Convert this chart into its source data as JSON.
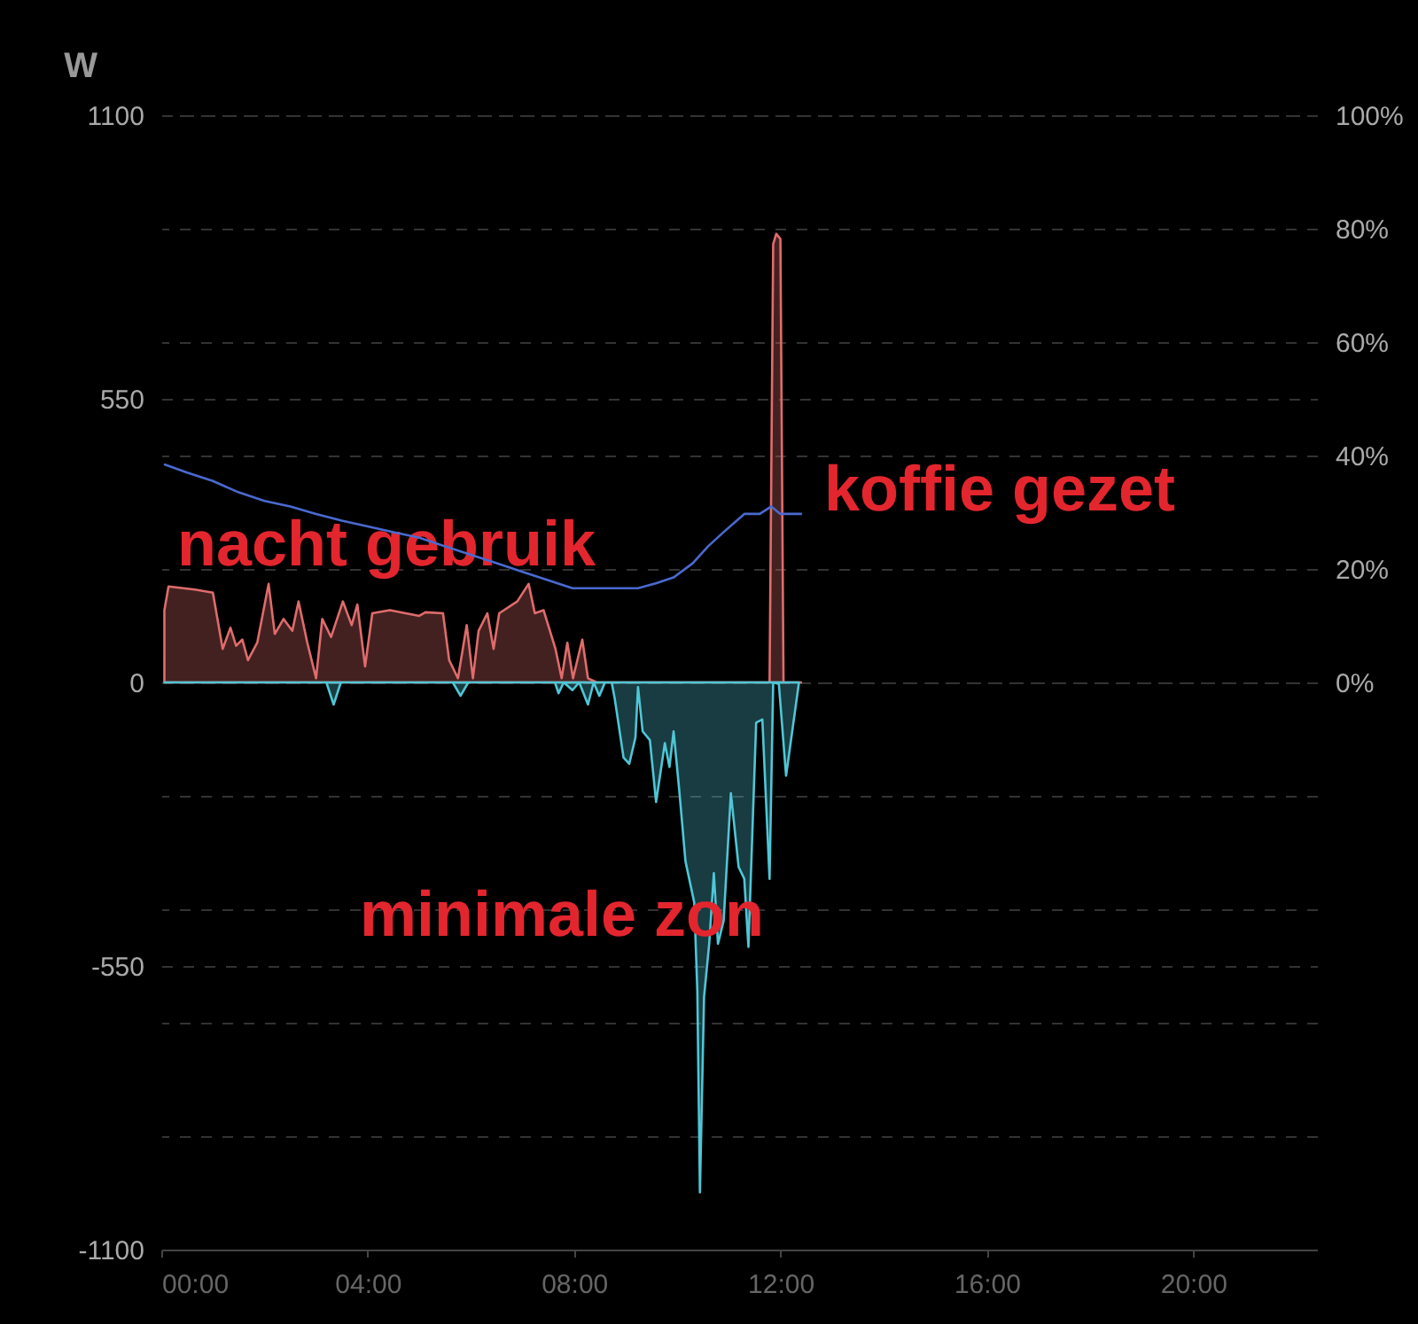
{
  "chart_data": {
    "type": "area",
    "ylabel": "W",
    "xlim": [
      0,
      22.4
    ],
    "xticks": [
      {
        "value": 0,
        "label": "00:00"
      },
      {
        "value": 4,
        "label": "04:00"
      },
      {
        "value": 8,
        "label": "08:00"
      },
      {
        "value": 12,
        "label": "12:00"
      },
      {
        "value": 16,
        "label": "16:00"
      },
      {
        "value": 20,
        "label": "20:00"
      }
    ],
    "ylim": [
      -1100,
      1100
    ],
    "yticks": [
      1100,
      550,
      0,
      -550,
      -1100
    ],
    "y2lim": [
      -100,
      100
    ],
    "y2ticks": [
      {
        "value": 100,
        "label": "100%"
      },
      {
        "value": 80,
        "label": "80%"
      },
      {
        "value": 60,
        "label": "60%"
      },
      {
        "value": 40,
        "label": "40%"
      },
      {
        "value": 20,
        "label": "20%"
      },
      {
        "value": 0,
        "label": "0%"
      },
      {
        "value": -20,
        "label": null
      },
      {
        "value": -40,
        "label": null
      },
      {
        "value": -60,
        "label": null
      },
      {
        "value": -80,
        "label": null
      },
      {
        "value": -100,
        "label": null
      }
    ],
    "grid": true,
    "annotations": [
      "nacht gebruik",
      "koffie gezet",
      "minimale zon"
    ],
    "series": [
      {
        "color": "#e06c6c",
        "x": [
          0.06,
          0.14,
          0.65,
          1.0,
          1.19,
          1.34,
          1.45,
          1.57,
          1.68,
          1.86,
          2.08,
          2.2,
          2.37,
          2.54,
          2.66,
          2.83,
          3.0,
          3.12,
          3.29,
          3.52,
          3.69,
          3.8,
          3.95,
          4.09,
          4.43,
          5.0,
          5.12,
          5.46,
          5.58,
          5.75,
          5.92,
          6.04,
          6.15,
          6.32,
          6.44,
          6.55,
          6.9,
          7.12,
          7.24,
          7.41,
          7.64,
          7.76,
          7.87,
          7.98,
          8.16,
          8.27,
          8.44,
          11.79,
          11.86,
          11.92,
          12.0,
          12.06,
          12.4
        ],
        "values": [
          140,
          186,
          180,
          174,
          65,
          106,
          71,
          83,
          43,
          77,
          191,
          94,
          123,
          100,
          157,
          77,
          8,
          123,
          88,
          157,
          111,
          151,
          31,
          134,
          140,
          129,
          136,
          134,
          43,
          8,
          111,
          8,
          100,
          134,
          65,
          134,
          157,
          191,
          134,
          140,
          65,
          8,
          77,
          8,
          83,
          8,
          0,
          0,
          850,
          870,
          860,
          0,
          0
        ]
      },
      {
        "color": "#4fc6d6",
        "x": [
          0.06,
          3.2,
          3.34,
          3.48,
          5.65,
          5.8,
          5.95,
          7.63,
          7.7,
          7.8,
          7.97,
          8.1,
          8.27,
          8.38,
          8.49,
          8.6,
          8.73,
          8.79,
          8.96,
          9.07,
          9.19,
          9.24,
          9.33,
          9.47,
          9.59,
          9.76,
          9.85,
          9.93,
          10.04,
          10.16,
          10.33,
          10.39,
          10.44,
          10.52,
          10.62,
          10.71,
          10.79,
          10.9,
          11.04,
          11.19,
          11.3,
          11.38,
          11.53,
          11.65,
          11.79,
          11.86,
          11.97,
          12.11,
          12.36
        ],
        "values": [
          0,
          0,
          -43,
          0,
          0,
          -26,
          0,
          0,
          -21,
          0,
          -15,
          0,
          -43,
          0,
          -26,
          0,
          0,
          -32,
          -146,
          -158,
          -107,
          -9,
          -95,
          -112,
          -232,
          -118,
          -164,
          -95,
          -210,
          -347,
          -427,
          -599,
          -989,
          -610,
          -507,
          -370,
          -507,
          -462,
          -215,
          -358,
          -381,
          -513,
          -78,
          -72,
          -381,
          0,
          -3,
          -181,
          0
        ]
      },
      {
        "type": "line",
        "axis": "y2",
        "color": "#4a6ad0",
        "x": [
          0.07,
          0.5,
          1.0,
          1.5,
          2.0,
          2.5,
          3.0,
          3.5,
          4.0,
          4.5,
          5.0,
          5.5,
          6.0,
          6.5,
          7.0,
          7.5,
          7.97,
          9.24,
          9.6,
          9.93,
          10.3,
          10.6,
          10.9,
          11.3,
          11.6,
          11.82,
          12.0,
          12.4
        ],
        "values": [
          38.4,
          37,
          35.5,
          33.5,
          32,
          31,
          29.7,
          28.5,
          27.5,
          26.5,
          25.5,
          24,
          22.5,
          21,
          19.5,
          18,
          16.6,
          16.6,
          17.5,
          18.5,
          21,
          24,
          26.5,
          29.7,
          29.7,
          31,
          29.7,
          29.7
        ]
      }
    ]
  }
}
